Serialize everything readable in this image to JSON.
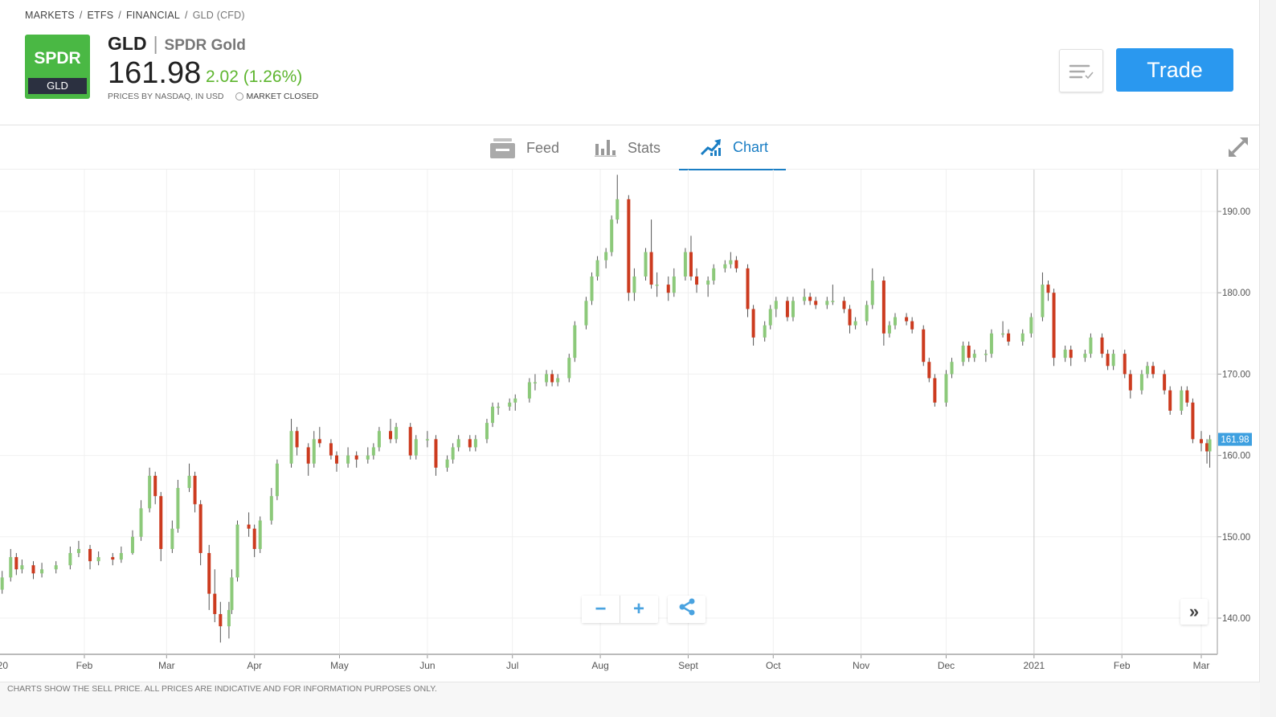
{
  "breadcrumb": [
    "MARKETS",
    "ETFS",
    "FINANCIAL",
    "GLD (CFD)"
  ],
  "instrument": {
    "logo_text": "SPDR",
    "logo_ticker": "GLD",
    "ticker": "GLD",
    "name": "SPDR Gold",
    "price": "161.98",
    "change": "2.02 (1.26%)",
    "source": "PRICES BY NASDAQ, IN USD",
    "market_status": "MARKET CLOSED"
  },
  "actions": {
    "trade_label": "Trade",
    "watchlist_icon": "list-check-icon"
  },
  "tabs": [
    {
      "label": "Feed",
      "icon": "feed-icon",
      "active": false
    },
    {
      "label": "Stats",
      "icon": "bar-chart-icon",
      "active": false
    },
    {
      "label": "Chart",
      "icon": "trend-chart-icon",
      "active": true
    }
  ],
  "chart_controls": {
    "zoom_out": "−",
    "zoom_in": "+",
    "scroll_right": "»"
  },
  "footer": {
    "disclaimer": "CHARTS SHOW THE SELL PRICE. ALL PRICES ARE INDICATIVE AND FOR INFORMATION PURPOSES ONLY."
  },
  "colors": {
    "up": "#8cc97a",
    "down": "#cc3b1f",
    "accent": "#2a98ef",
    "tab_active": "#1a7ec4",
    "positive_change": "#5db52e",
    "logo": "#4ab844"
  },
  "chart_data": {
    "type": "candlestick",
    "ylim": [
      135,
      195
    ],
    "y_ticks": [
      "140.00",
      "150.00",
      "160.00",
      "170.00",
      "180.00",
      "190.00"
    ],
    "x_ticks": [
      {
        "label": "20",
        "date": "2020-01-01"
      },
      {
        "label": "Feb",
        "date": "2020-02-01"
      },
      {
        "label": "Mar",
        "date": "2020-03-01"
      },
      {
        "label": "Apr",
        "date": "2020-04-01"
      },
      {
        "label": "May",
        "date": "2020-05-01"
      },
      {
        "label": "Jun",
        "date": "2020-06-01"
      },
      {
        "label": "Jul",
        "date": "2020-07-01"
      },
      {
        "label": "Aug",
        "date": "2020-08-01"
      },
      {
        "label": "Sept",
        "date": "2020-09-01"
      },
      {
        "label": "Oct",
        "date": "2020-10-01"
      },
      {
        "label": "Nov",
        "date": "2020-11-01"
      },
      {
        "label": "Dec",
        "date": "2020-12-01"
      },
      {
        "label": "2021",
        "date": "2021-01-01"
      },
      {
        "label": "Feb",
        "date": "2021-02-01"
      },
      {
        "label": "Mar",
        "date": "2021-03-01"
      }
    ],
    "last_price_label": "161.98",
    "last_price": 161.98,
    "grid": true,
    "candles_ohlc": [
      [
        "2020-01-03",
        143.5,
        145.8,
        143,
        145
      ],
      [
        "2020-01-06",
        145,
        148.5,
        144.5,
        147.5
      ],
      [
        "2020-01-08",
        147.5,
        148,
        145.3,
        146
      ],
      [
        "2020-01-10",
        146,
        147.2,
        145.5,
        146.5
      ],
      [
        "2020-01-14",
        146.5,
        147,
        144.8,
        145.5
      ],
      [
        "2020-01-17",
        145.5,
        146.8,
        145,
        146
      ],
      [
        "2020-01-22",
        146,
        147,
        145.5,
        146.5
      ],
      [
        "2020-01-27",
        146.5,
        148.8,
        146,
        148
      ],
      [
        "2020-01-30",
        148,
        149.5,
        147.5,
        148.5
      ],
      [
        "2020-02-03",
        148.5,
        149,
        146,
        147
      ],
      [
        "2020-02-06",
        147,
        148.2,
        146.5,
        147.5
      ],
      [
        "2020-02-11",
        147.5,
        148,
        146.5,
        147.2
      ],
      [
        "2020-02-14",
        147.2,
        148.8,
        146.8,
        148
      ],
      [
        "2020-02-18",
        148,
        150.8,
        147.8,
        150
      ],
      [
        "2020-02-21",
        150,
        154.5,
        149.5,
        153.5
      ],
      [
        "2020-02-24",
        153.5,
        158.5,
        153,
        157.5
      ],
      [
        "2020-02-26",
        157.5,
        158,
        154,
        155
      ],
      [
        "2020-02-28",
        155,
        155.5,
        147,
        148.5
      ],
      [
        "2020-03-03",
        148.5,
        152,
        148,
        151
      ],
      [
        "2020-03-05",
        151,
        157,
        150.5,
        156
      ],
      [
        "2020-03-09",
        156,
        159,
        155.5,
        157.5
      ],
      [
        "2020-03-11",
        157.5,
        158,
        153,
        154
      ],
      [
        "2020-03-13",
        154,
        154.5,
        146.5,
        148
      ],
      [
        "2020-03-16",
        148,
        149,
        141,
        143
      ],
      [
        "2020-03-18",
        143,
        146,
        139.5,
        140.5
      ],
      [
        "2020-03-20",
        140.5,
        142,
        137,
        139
      ],
      [
        "2020-03-23",
        139,
        142,
        137.5,
        141
      ],
      [
        "2020-03-24",
        141,
        146,
        140.5,
        145
      ],
      [
        "2020-03-26",
        145,
        152,
        144.5,
        151.5
      ],
      [
        "2020-03-30",
        151.5,
        153,
        150,
        151
      ],
      [
        "2020-04-01",
        151,
        151.5,
        147.5,
        148.5
      ],
      [
        "2020-04-03",
        148.5,
        152.5,
        148,
        152
      ],
      [
        "2020-04-07",
        152,
        156,
        151.5,
        155
      ],
      [
        "2020-04-09",
        155,
        159.5,
        154.5,
        159
      ],
      [
        "2020-04-14",
        159,
        164.5,
        158.5,
        163
      ],
      [
        "2020-04-16",
        163,
        163.5,
        160,
        161
      ],
      [
        "2020-04-20",
        161,
        161.5,
        157.5,
        159
      ],
      [
        "2020-04-22",
        159,
        163,
        158.5,
        162
      ],
      [
        "2020-04-24",
        162,
        163.5,
        161,
        161.5
      ],
      [
        "2020-04-28",
        161.5,
        162,
        159.5,
        160
      ],
      [
        "2020-04-30",
        160,
        160.5,
        158,
        159
      ],
      [
        "2020-05-04",
        159,
        161,
        158.5,
        160
      ],
      [
        "2020-05-07",
        160,
        160.5,
        158.5,
        159.5
      ],
      [
        "2020-05-11",
        159.5,
        161,
        159,
        160
      ],
      [
        "2020-05-13",
        160,
        161.5,
        159.5,
        161
      ],
      [
        "2020-05-15",
        161,
        163.5,
        160.5,
        163
      ],
      [
        "2020-05-19",
        163,
        164.5,
        161.5,
        162
      ],
      [
        "2020-05-21",
        162,
        164,
        161.5,
        163.5
      ],
      [
        "2020-05-26",
        163.5,
        164,
        159.5,
        160
      ],
      [
        "2020-05-28",
        160,
        162.5,
        159.5,
        162
      ],
      [
        "2020-06-01",
        162,
        163,
        161,
        162
      ],
      [
        "2020-06-04",
        162,
        162.5,
        157.5,
        158.5
      ],
      [
        "2020-06-08",
        158.5,
        160,
        158,
        159.5
      ],
      [
        "2020-06-10",
        159.5,
        161.5,
        159,
        161
      ],
      [
        "2020-06-12",
        161,
        162.5,
        160.5,
        162
      ],
      [
        "2020-06-16",
        162,
        162.5,
        160.5,
        161
      ],
      [
        "2020-06-18",
        161,
        162.5,
        160.5,
        162
      ],
      [
        "2020-06-22",
        162,
        164.5,
        161.5,
        164
      ],
      [
        "2020-06-24",
        164,
        166.5,
        163.5,
        166
      ],
      [
        "2020-06-26",
        166,
        166.5,
        165,
        166
      ],
      [
        "2020-06-30",
        166,
        167,
        165.5,
        166.5
      ],
      [
        "2020-07-02",
        166.5,
        167.5,
        165.5,
        167
      ],
      [
        "2020-07-07",
        167,
        169.5,
        166.5,
        169
      ],
      [
        "2020-07-09",
        169,
        170,
        168,
        169
      ],
      [
        "2020-07-13",
        169,
        170.5,
        168.5,
        170
      ],
      [
        "2020-07-15",
        170,
        170.5,
        168.5,
        169
      ],
      [
        "2020-07-17",
        169,
        170,
        168.5,
        169.5
      ],
      [
        "2020-07-21",
        169.5,
        172.5,
        169,
        172
      ],
      [
        "2020-07-23",
        172,
        176.5,
        171.5,
        176
      ],
      [
        "2020-07-27",
        176,
        179.5,
        175.5,
        179
      ],
      [
        "2020-07-29",
        179,
        182.5,
        178.5,
        182
      ],
      [
        "2020-07-31",
        182,
        184.5,
        181.5,
        184
      ],
      [
        "2020-08-03",
        184,
        185.5,
        183,
        185
      ],
      [
        "2020-08-05",
        185,
        189.5,
        184.5,
        189
      ],
      [
        "2020-08-07",
        189,
        194.5,
        188.5,
        191.5
      ],
      [
        "2020-08-11",
        191.5,
        192,
        179,
        180
      ],
      [
        "2020-08-13",
        180,
        183,
        179,
        182
      ],
      [
        "2020-08-17",
        182,
        185.5,
        181.5,
        185
      ],
      [
        "2020-08-19",
        185,
        189,
        180.5,
        181
      ],
      [
        "2020-08-21",
        181,
        182.5,
        179.5,
        181
      ],
      [
        "2020-08-25",
        181,
        182,
        179,
        180
      ],
      [
        "2020-08-27",
        180,
        183,
        179.5,
        182
      ],
      [
        "2020-08-31",
        182,
        185.5,
        181.5,
        185
      ],
      [
        "2020-09-02",
        185,
        187,
        181.5,
        182
      ],
      [
        "2020-09-04",
        182,
        183,
        180,
        181
      ],
      [
        "2020-09-08",
        181,
        182,
        179.5,
        181.5
      ],
      [
        "2020-09-10",
        181.5,
        183.5,
        181,
        183
      ],
      [
        "2020-09-14",
        183,
        184,
        182.5,
        183.5
      ],
      [
        "2020-09-16",
        183.5,
        185,
        183,
        184
      ],
      [
        "2020-09-18",
        184,
        184.5,
        182.5,
        183
      ],
      [
        "2020-09-22",
        183,
        183.5,
        177,
        178
      ],
      [
        "2020-09-24",
        178,
        178.5,
        173.5,
        174.5
      ],
      [
        "2020-09-28",
        174.5,
        176.5,
        174,
        176
      ],
      [
        "2020-09-30",
        176,
        178.5,
        175.5,
        178
      ],
      [
        "2020-10-02",
        178,
        179.5,
        177,
        179
      ],
      [
        "2020-10-06",
        179,
        179.5,
        176.5,
        177
      ],
      [
        "2020-10-08",
        177,
        179.5,
        176.5,
        179
      ],
      [
        "2020-10-12",
        179,
        180.5,
        178.5,
        179.5
      ],
      [
        "2020-10-14",
        179.5,
        180,
        178.5,
        179
      ],
      [
        "2020-10-16",
        179,
        179.5,
        178,
        178.5
      ],
      [
        "2020-10-20",
        178.5,
        179.5,
        178,
        179
      ],
      [
        "2020-10-22",
        179,
        181,
        178.5,
        179
      ],
      [
        "2020-10-26",
        179,
        179.5,
        177.5,
        178
      ],
      [
        "2020-10-28",
        178,
        178.5,
        175,
        176
      ],
      [
        "2020-10-30",
        176,
        177,
        175.5,
        176.5
      ],
      [
        "2020-11-03",
        176.5,
        179,
        176,
        178.5
      ],
      [
        "2020-11-05",
        178.5,
        183,
        178,
        181.5
      ],
      [
        "2020-11-09",
        181.5,
        182,
        173.5,
        175
      ],
      [
        "2020-11-11",
        175,
        176.5,
        174.5,
        176
      ],
      [
        "2020-11-13",
        176,
        177.5,
        175.5,
        177
      ],
      [
        "2020-11-17",
        177,
        177.5,
        176,
        176.5
      ],
      [
        "2020-11-19",
        176.5,
        177,
        175,
        175.5
      ],
      [
        "2020-11-23",
        175.5,
        176,
        171,
        171.5
      ],
      [
        "2020-11-25",
        171.5,
        172,
        169,
        169.5
      ],
      [
        "2020-11-27",
        169.5,
        170,
        166,
        166.5
      ],
      [
        "2020-12-01",
        166.5,
        170.5,
        166,
        170
      ],
      [
        "2020-12-03",
        170,
        172,
        169.5,
        171.5
      ],
      [
        "2020-12-07",
        171.5,
        174,
        171,
        173.5
      ],
      [
        "2020-12-09",
        173.5,
        174,
        171.5,
        172
      ],
      [
        "2020-12-11",
        172,
        173,
        171.5,
        172.5
      ],
      [
        "2020-12-15",
        172.5,
        173,
        171.5,
        172.5
      ],
      [
        "2020-12-17",
        172.5,
        175.5,
        172,
        175
      ],
      [
        "2020-12-21",
        175,
        176.5,
        174.5,
        175
      ],
      [
        "2020-12-23",
        175,
        175.5,
        173.5,
        174
      ],
      [
        "2020-12-28",
        174,
        175.5,
        173.5,
        175
      ],
      [
        "2020-12-31",
        175,
        177.5,
        174.5,
        177
      ],
      [
        "2021-01-04",
        177,
        182.5,
        176.5,
        181
      ],
      [
        "2021-01-06",
        181,
        181.5,
        179,
        180
      ],
      [
        "2021-01-08",
        180,
        180.5,
        171,
        172
      ],
      [
        "2021-01-12",
        172,
        173.5,
        171.5,
        173
      ],
      [
        "2021-01-14",
        173,
        173.5,
        171,
        172
      ],
      [
        "2021-01-19",
        172,
        173,
        171.5,
        172.5
      ],
      [
        "2021-01-21",
        172.5,
        175,
        172,
        174.5
      ],
      [
        "2021-01-25",
        174.5,
        175,
        172,
        172.5
      ],
      [
        "2021-01-27",
        172.5,
        173,
        170.5,
        171
      ],
      [
        "2021-01-29",
        171,
        173,
        170.5,
        172.5
      ],
      [
        "2021-02-02",
        172.5,
        173,
        169.5,
        170
      ],
      [
        "2021-02-04",
        170,
        170.5,
        167,
        168
      ],
      [
        "2021-02-08",
        168,
        170.5,
        167.5,
        170
      ],
      [
        "2021-02-10",
        170,
        171.5,
        169.5,
        171
      ],
      [
        "2021-02-12",
        171,
        171.5,
        169.5,
        170
      ],
      [
        "2021-02-16",
        170,
        170.5,
        167.5,
        168
      ],
      [
        "2021-02-18",
        168,
        168.5,
        165,
        165.5
      ],
      [
        "2021-02-22",
        165.5,
        168.5,
        165,
        168
      ],
      [
        "2021-02-24",
        168,
        168.5,
        166,
        166.5
      ],
      [
        "2021-02-26",
        166.5,
        167,
        161.5,
        162
      ],
      [
        "2021-03-01",
        162,
        163,
        160.5,
        161.5
      ],
      [
        "2021-03-03",
        161.5,
        162,
        159,
        160.5
      ],
      [
        "2021-03-04",
        160.5,
        162.5,
        158.5,
        161.98
      ]
    ]
  }
}
